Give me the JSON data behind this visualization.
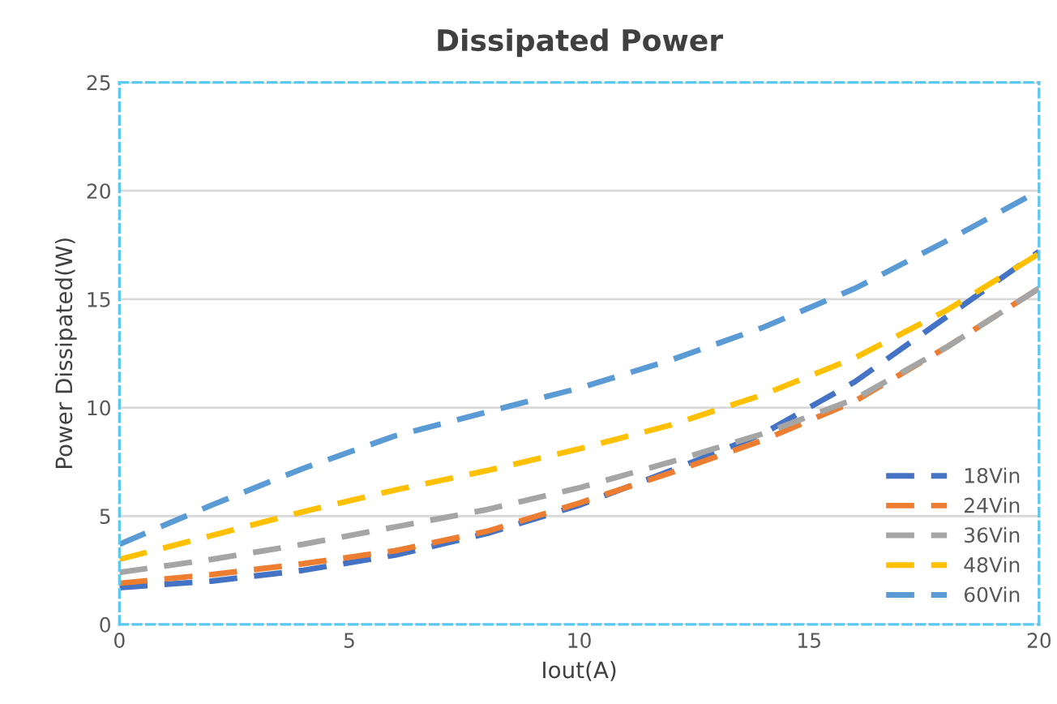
{
  "chart_data": {
    "type": "line",
    "title": "Dissipated Power",
    "xlabel": "Iout(A)",
    "ylabel": "Power Dissipated(W)",
    "x": [
      0,
      2,
      4,
      6,
      8,
      10,
      12,
      14,
      16,
      18,
      20
    ],
    "series": [
      {
        "name": "18Vin",
        "color": "#4472c4",
        "values": [
          1.7,
          2.0,
          2.5,
          3.2,
          4.2,
          5.5,
          7.1,
          8.8,
          11.2,
          14.2,
          17.2
        ]
      },
      {
        "name": "24Vin",
        "color": "#ed7d31",
        "values": [
          1.9,
          2.3,
          2.8,
          3.4,
          4.3,
          5.6,
          7.0,
          8.5,
          10.3,
          12.8,
          15.5
        ]
      },
      {
        "name": "36Vin",
        "color": "#a5a5a5",
        "values": [
          2.4,
          3.0,
          3.7,
          4.5,
          5.3,
          6.3,
          7.5,
          8.8,
          10.4,
          12.8,
          15.5
        ]
      },
      {
        "name": "48Vin",
        "color": "#ffc000",
        "values": [
          3.0,
          4.1,
          5.2,
          6.2,
          7.1,
          8.1,
          9.2,
          10.6,
          12.3,
          14.5,
          17.1
        ]
      },
      {
        "name": "60Vin",
        "color": "#5b9bd5",
        "values": [
          3.7,
          5.5,
          7.2,
          8.7,
          9.8,
          10.9,
          12.2,
          13.7,
          15.5,
          17.7,
          20.0
        ]
      }
    ],
    "xlim": [
      0,
      20
    ],
    "xticks": [
      0,
      5,
      10,
      15,
      20
    ],
    "ylim": [
      0,
      25
    ],
    "yticks": [
      0,
      5,
      10,
      15,
      20,
      25
    ],
    "grid": "y",
    "legend": "bottom right",
    "line_style": "dashed",
    "marker": "none"
  }
}
